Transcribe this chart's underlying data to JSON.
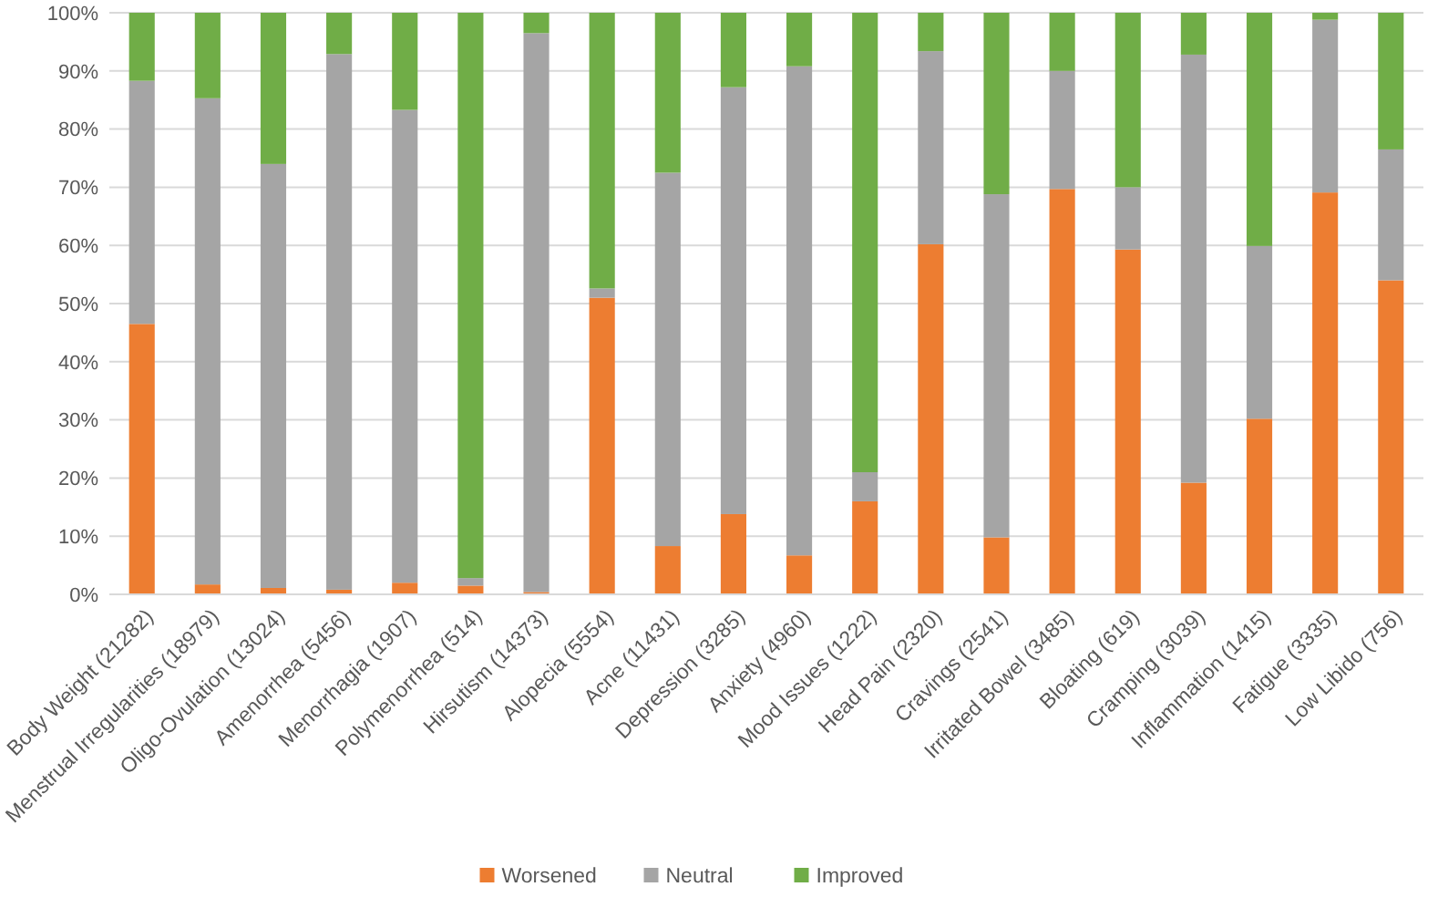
{
  "chart_data": {
    "type": "bar",
    "stacked": true,
    "categories": [
      "Body Weight (21282)",
      "Menstrual Irregularities (18979)",
      "Oligo-Ovulation (13024)",
      "Amenorrhea (5456)",
      "Menorrhagia (1907)",
      "Polymenorrhea (514)",
      "Hirsutism (14373)",
      "Alopecia (5554)",
      "Acne (11431)",
      "Depression (3285)",
      "Anxiety (4960)",
      "Mood Issues (1222)",
      "Head Pain (2320)",
      "Cravings (2541)",
      "Irritated Bowel (3485)",
      "Bloating (619)",
      "Cramping (3039)",
      "Inflammation (1415)",
      "Fatigue (3335)",
      "Low Libido (756)"
    ],
    "series": [
      {
        "name": "Worsened",
        "color": "#ed7d31",
        "values": [
          46.5,
          1.7,
          1.1,
          0.8,
          2,
          1.5,
          0.4,
          51,
          8.3,
          13.8,
          6.7,
          16,
          60.2,
          9.8,
          69.7,
          59.3,
          19.2,
          30.2,
          69.1,
          54
        ]
      },
      {
        "name": "Neutral",
        "color": "#a5a5a5",
        "values": [
          41.8,
          83.6,
          72.9,
          92.1,
          81.3,
          1.3,
          96.1,
          1.6,
          64.2,
          73.4,
          84.1,
          5,
          33.2,
          59,
          20.3,
          10.7,
          73.6,
          29.7,
          29.7,
          22.5
        ]
      },
      {
        "name": "Improved",
        "color": "#70ad47",
        "values": [
          11.7,
          14.7,
          26,
          7.1,
          16.7,
          97.2,
          3.5,
          47.4,
          27.5,
          12.8,
          9.2,
          79,
          6.6,
          31.2,
          10,
          30,
          7.2,
          40.1,
          1.2,
          23.5
        ]
      }
    ],
    "ylim": [
      0,
      100
    ],
    "yticks": [
      {
        "value": 0,
        "label": "0%"
      },
      {
        "value": 10,
        "label": "10%"
      },
      {
        "value": 20,
        "label": "20%"
      },
      {
        "value": 30,
        "label": "30%"
      },
      {
        "value": 40,
        "label": "40%"
      },
      {
        "value": 50,
        "label": "50%"
      },
      {
        "value": 60,
        "label": "60%"
      },
      {
        "value": 70,
        "label": "70%"
      },
      {
        "value": 80,
        "label": "80%"
      },
      {
        "value": 90,
        "label": "90%"
      },
      {
        "value": 100,
        "label": "100%"
      }
    ],
    "grid": "y",
    "legend": "bottom"
  }
}
